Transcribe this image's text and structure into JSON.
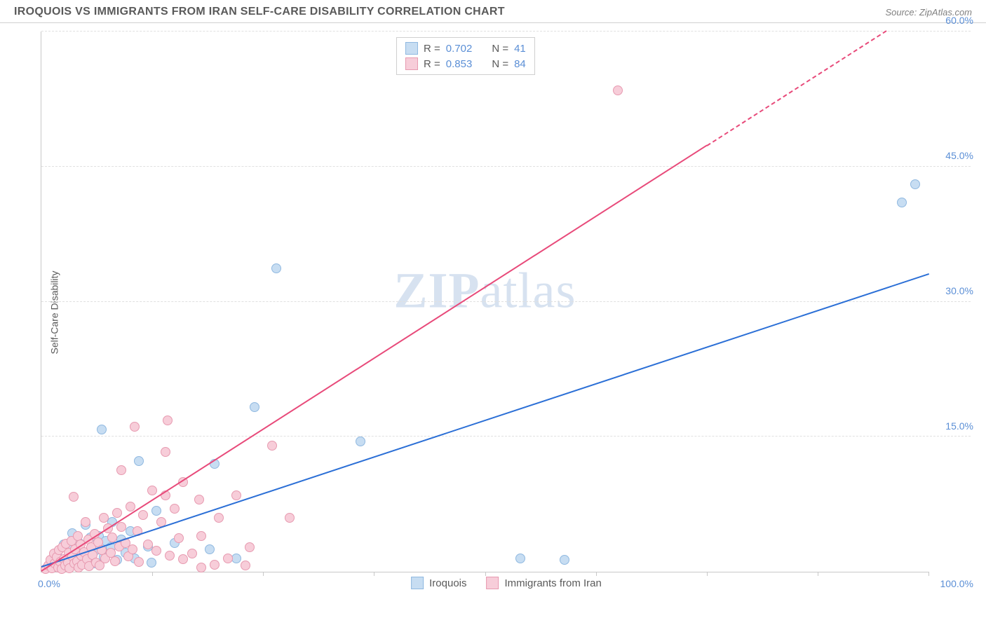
{
  "header": {
    "title": "IROQUOIS VS IMMIGRANTS FROM IRAN SELF-CARE DISABILITY CORRELATION CHART",
    "source": "Source: ZipAtlas.com"
  },
  "y_axis_label": "Self-Care Disability",
  "watermark": {
    "zip": "ZIP",
    "atlas": "atlas"
  },
  "chart": {
    "type": "scatter",
    "background_color": "#ffffff",
    "grid_color": "#e0e0e0",
    "border_color": "#c8c8c8",
    "xlim": [
      0,
      100
    ],
    "ylim": [
      0,
      60
    ],
    "x_origin_label": "0.0%",
    "x_max_label": "100.0%",
    "y_ticks": [
      {
        "value": 15,
        "label": "15.0%"
      },
      {
        "value": 30,
        "label": "30.0%"
      },
      {
        "value": 45,
        "label": "45.0%"
      },
      {
        "value": 60,
        "label": "60.0%"
      }
    ],
    "x_tick_positions": [
      12.5,
      25,
      37.5,
      50,
      62.5,
      75,
      87.5,
      100
    ],
    "point_radius": 7,
    "point_border_width": 1.2,
    "series": [
      {
        "name": "Iroquois",
        "color_fill": "#c7ddf2",
        "color_border": "#8fb8e0",
        "R": "0.702",
        "N": "41",
        "trend": {
          "slope": 0.325,
          "intercept": 0.5,
          "color": "#2b6fd6",
          "dash_from_x": null
        },
        "points": [
          [
            1.2,
            1.0
          ],
          [
            1.8,
            2.2
          ],
          [
            2.0,
            0.8
          ],
          [
            2.5,
            3.0
          ],
          [
            3.0,
            1.2
          ],
          [
            3.2,
            2.8
          ],
          [
            3.5,
            4.3
          ],
          [
            4.0,
            1.8
          ],
          [
            4.3,
            3.2
          ],
          [
            4.8,
            2.0
          ],
          [
            5.0,
            5.2
          ],
          [
            5.2,
            1.4
          ],
          [
            5.5,
            3.8
          ],
          [
            6.0,
            0.9
          ],
          [
            6.2,
            2.4
          ],
          [
            6.5,
            4.0
          ],
          [
            7.0,
            1.6
          ],
          [
            7.3,
            3.4
          ],
          [
            7.8,
            2.7
          ],
          [
            8.0,
            5.5
          ],
          [
            8.5,
            1.3
          ],
          [
            9.0,
            3.6
          ],
          [
            9.5,
            2.1
          ],
          [
            10.0,
            4.5
          ],
          [
            10.5,
            1.5
          ],
          [
            11.0,
            12.3
          ],
          [
            6.8,
            15.8
          ],
          [
            12.0,
            2.8
          ],
          [
            12.4,
            1.0
          ],
          [
            15.0,
            3.2
          ],
          [
            13.0,
            6.8
          ],
          [
            19.0,
            2.5
          ],
          [
            22.0,
            1.5
          ],
          [
            24.0,
            18.3
          ],
          [
            26.5,
            33.7
          ],
          [
            19.5,
            12.0
          ],
          [
            36.0,
            14.5
          ],
          [
            54.0,
            1.5
          ],
          [
            59.0,
            1.3
          ],
          [
            97.0,
            41.0
          ],
          [
            98.5,
            43.0
          ]
        ]
      },
      {
        "name": "Immigrants from Iran",
        "color_fill": "#f7cdd9",
        "color_border": "#e79ab0",
        "R": "0.853",
        "N": "84",
        "trend": {
          "slope": 0.63,
          "intercept": 0.0,
          "color": "#e84a7a",
          "dash_from_x": 75
        },
        "points": [
          [
            0.5,
            0.3
          ],
          [
            0.8,
            0.7
          ],
          [
            1.0,
            1.3
          ],
          [
            1.2,
            0.4
          ],
          [
            1.4,
            2.0
          ],
          [
            1.5,
            0.9
          ],
          [
            1.7,
            1.6
          ],
          [
            1.9,
            0.5
          ],
          [
            2.0,
            2.4
          ],
          [
            2.1,
            1.1
          ],
          [
            2.3,
            0.3
          ],
          [
            2.4,
            2.7
          ],
          [
            2.5,
            1.4
          ],
          [
            2.7,
            0.7
          ],
          [
            2.8,
            3.1
          ],
          [
            3.0,
            1.0
          ],
          [
            3.1,
            2.1
          ],
          [
            3.2,
            0.4
          ],
          [
            3.4,
            3.4
          ],
          [
            3.5,
            1.7
          ],
          [
            3.6,
            8.3
          ],
          [
            3.7,
            0.9
          ],
          [
            3.8,
            2.5
          ],
          [
            4.0,
            1.2
          ],
          [
            4.1,
            4.0
          ],
          [
            4.2,
            0.5
          ],
          [
            4.4,
            3.0
          ],
          [
            4.5,
            1.8
          ],
          [
            4.6,
            0.8
          ],
          [
            4.8,
            2.2
          ],
          [
            5.0,
            5.5
          ],
          [
            5.1,
            1.4
          ],
          [
            5.3,
            3.6
          ],
          [
            5.4,
            0.6
          ],
          [
            5.6,
            2.7
          ],
          [
            5.8,
            1.9
          ],
          [
            6.0,
            4.2
          ],
          [
            6.2,
            1.0
          ],
          [
            6.4,
            3.3
          ],
          [
            6.6,
            0.7
          ],
          [
            6.8,
            2.4
          ],
          [
            7.0,
            6.0
          ],
          [
            7.2,
            1.5
          ],
          [
            7.5,
            4.8
          ],
          [
            7.8,
            2.1
          ],
          [
            8.0,
            3.8
          ],
          [
            8.3,
            1.2
          ],
          [
            8.5,
            6.5
          ],
          [
            8.8,
            2.8
          ],
          [
            9.0,
            11.3
          ],
          [
            9.0,
            5.0
          ],
          [
            9.5,
            3.2
          ],
          [
            9.8,
            1.7
          ],
          [
            10.0,
            7.2
          ],
          [
            10.3,
            2.5
          ],
          [
            10.5,
            16.1
          ],
          [
            10.8,
            4.5
          ],
          [
            11.0,
            1.1
          ],
          [
            11.5,
            6.3
          ],
          [
            12.0,
            3.0
          ],
          [
            12.5,
            9.0
          ],
          [
            13.0,
            2.3
          ],
          [
            13.5,
            5.5
          ],
          [
            14.0,
            8.5
          ],
          [
            14.5,
            1.8
          ],
          [
            15.0,
            7.0
          ],
          [
            15.5,
            3.7
          ],
          [
            16.0,
            1.4
          ],
          [
            14.2,
            16.8
          ],
          [
            17.0,
            2.0
          ],
          [
            18.0,
            4.0
          ],
          [
            14.0,
            13.3
          ],
          [
            19.5,
            0.8
          ],
          [
            20.0,
            6.0
          ],
          [
            21.0,
            1.5
          ],
          [
            22.0,
            8.5
          ],
          [
            23.0,
            0.7
          ],
          [
            26.0,
            14.0
          ],
          [
            17.8,
            8.0
          ],
          [
            28.0,
            6.0
          ],
          [
            23.5,
            2.7
          ],
          [
            18.0,
            0.5
          ],
          [
            65.0,
            53.5
          ],
          [
            16.0,
            10.0
          ]
        ]
      }
    ],
    "legend_top": {
      "r_label": "R =",
      "n_label": "N ="
    },
    "legend_bottom": [
      {
        "label": "Iroquois",
        "fill": "#c7ddf2",
        "border": "#8fb8e0"
      },
      {
        "label": "Immigrants from Iran",
        "fill": "#f7cdd9",
        "border": "#e79ab0"
      }
    ]
  }
}
